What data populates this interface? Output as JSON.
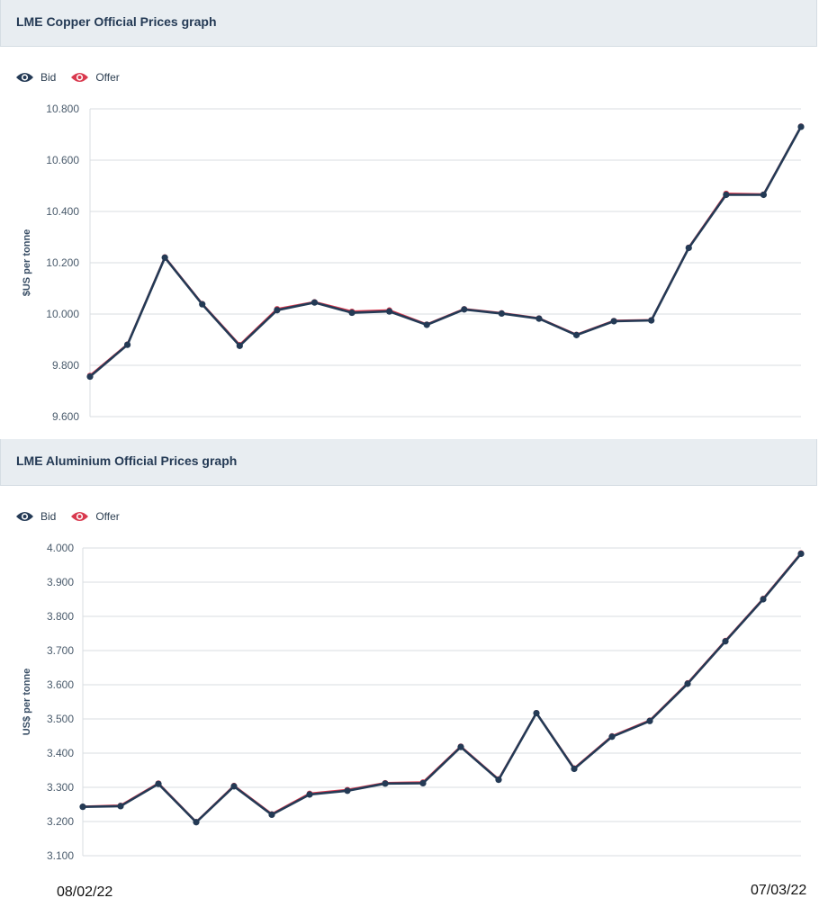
{
  "charts": [
    {
      "title": "LME Copper Official Prices graph",
      "legend": {
        "bid": "Bid",
        "offer": "Offer"
      },
      "ylabel": "$US per tonne"
    },
    {
      "title": "LME Aluminium Official Prices graph",
      "legend": {
        "bid": "Bid",
        "offer": "Offer"
      },
      "ylabel": "US$ per tonne"
    }
  ],
  "dates": {
    "start": "08/02/22",
    "end": "07/03/22"
  },
  "colors": {
    "bid": "#243a55",
    "offer": "#d9394e",
    "grid": "#d8dde2",
    "axis_text": "#4a5b6c"
  },
  "chart_data": [
    {
      "type": "line",
      "title": "LME Copper Official Prices graph",
      "ylabel": "$US per tonne",
      "ylim": [
        9600,
        10800
      ],
      "yticks": [
        9600,
        9800,
        10000,
        10200,
        10400,
        10600,
        10800
      ],
      "ytick_labels": [
        "9.600",
        "9.800",
        "10.000",
        "10.200",
        "10.400",
        "10.600",
        "10.800"
      ],
      "x_start": "08/02/22",
      "x_end": "07/03/22",
      "legend": "top-left",
      "series": [
        {
          "name": "Bid",
          "values": [
            9756,
            9880,
            10220,
            10038,
            9876,
            10015,
            10045,
            10005,
            10010,
            9958,
            10018,
            10002,
            9982,
            9918,
            9972,
            9975,
            10258,
            10465,
            10465,
            10730
          ]
        },
        {
          "name": "Offer",
          "values": [
            9760,
            9882,
            10222,
            10040,
            9880,
            10020,
            10047,
            10010,
            10015,
            9960,
            10020,
            10004,
            9984,
            9920,
            9974,
            9977,
            10260,
            10470,
            10467,
            10732
          ]
        }
      ]
    },
    {
      "type": "line",
      "title": "LME Aluminium Official Prices graph",
      "ylabel": "US$ per tonne",
      "ylim": [
        3100,
        4000
      ],
      "yticks": [
        3100,
        3200,
        3300,
        3400,
        3500,
        3600,
        3700,
        3800,
        3900,
        4000
      ],
      "ytick_labels": [
        "3.100",
        "3.200",
        "3.300",
        "3.400",
        "3.500",
        "3.600",
        "3.700",
        "3.800",
        "3.900",
        "4.000"
      ],
      "x_start": "08/02/22",
      "x_end": "07/03/22",
      "legend": "top-left",
      "series": [
        {
          "name": "Bid",
          "values": [
            3243,
            3245,
            3310,
            3198,
            3303,
            3220,
            3279,
            3290,
            3311,
            3312,
            3418,
            3322,
            3517,
            3354,
            3448,
            3494,
            3603,
            3727,
            3850,
            3983
          ]
        },
        {
          "name": "Offer",
          "values": [
            3244,
            3247,
            3312,
            3199,
            3305,
            3222,
            3282,
            3293,
            3313,
            3315,
            3420,
            3324,
            3518,
            3356,
            3450,
            3496,
            3605,
            3729,
            3852,
            3985
          ]
        }
      ]
    }
  ]
}
